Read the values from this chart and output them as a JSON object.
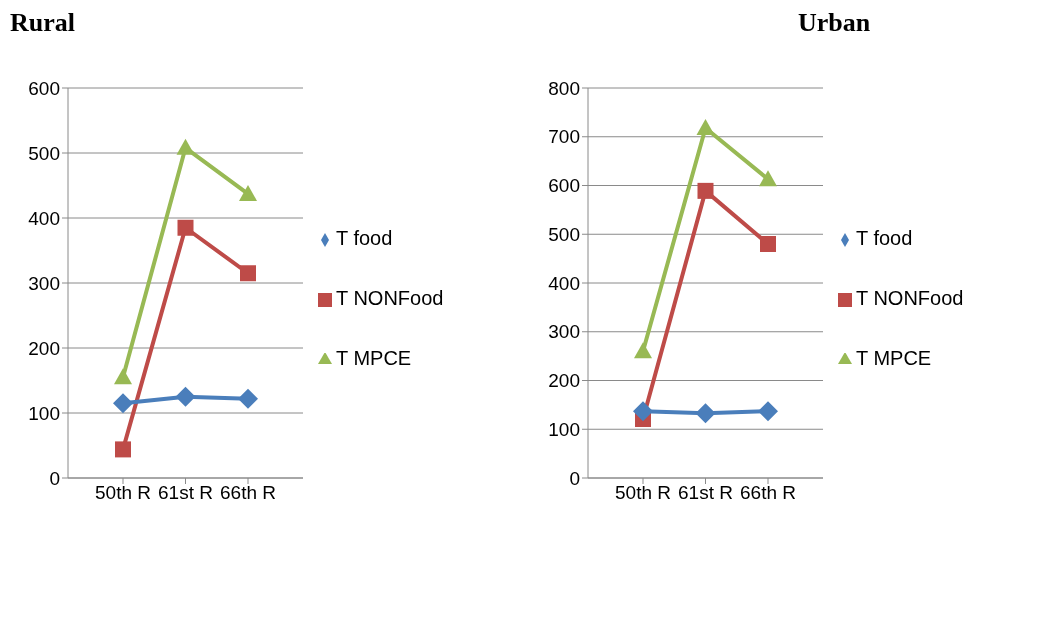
{
  "chart_data": [
    {
      "type": "line",
      "title": "Rural",
      "categories": [
        "50th R",
        "61st R",
        "66th R"
      ],
      "ylim": [
        0,
        600
      ],
      "yticks": [
        0,
        100,
        200,
        300,
        400,
        500,
        600
      ],
      "grid": "y",
      "legend": "right",
      "series": [
        {
          "name": "T food",
          "color": "#4a7ebb",
          "marker": "diamond",
          "values": [
            115,
            125,
            122
          ]
        },
        {
          "name": "T NONFood",
          "color": "#be4b48",
          "marker": "square",
          "values": [
            44,
            385,
            315
          ]
        },
        {
          "name": "T MPCE",
          "color": "#98b954",
          "marker": "triangle",
          "values": [
            155,
            508,
            437
          ]
        }
      ]
    },
    {
      "type": "line",
      "title": "Urban",
      "categories": [
        "50th R",
        "61st R",
        "66th R"
      ],
      "ylim": [
        0,
        800
      ],
      "yticks": [
        0,
        100,
        200,
        300,
        400,
        500,
        600,
        700,
        800
      ],
      "grid": "y",
      "legend": "right",
      "series": [
        {
          "name": "T food",
          "color": "#4a7ebb",
          "marker": "diamond",
          "values": [
            137,
            133,
            137
          ]
        },
        {
          "name": "T NONFood",
          "color": "#be4b48",
          "marker": "square",
          "values": [
            121,
            589,
            480
          ]
        },
        {
          "name": "T MPCE",
          "color": "#98b954",
          "marker": "triangle",
          "values": [
            260,
            718,
            613
          ]
        }
      ]
    }
  ]
}
